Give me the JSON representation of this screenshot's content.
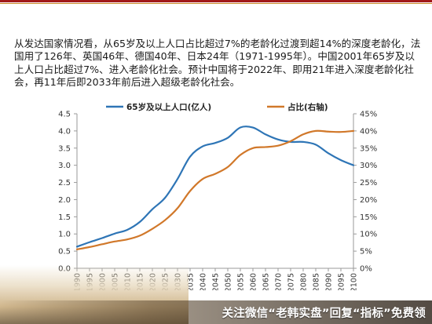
{
  "slide": {
    "paragraph": "从发达国家情况看，从65岁及以上人口占比超过7%的老龄化过渡到超14%的深度老龄化，法国用了126年、英国46年、德国40年、日本24年（1971-1995年）。中国2001年65岁及以上人口占比超过7%、进入老龄化社会。预计中国将于2022年、即用21年进入深度老龄化社会，再11年后即2033年前后进入超级老龄化社会。",
    "footer_text": "关注微信“老韩实盘”回复“指标”免费领"
  },
  "colors": {
    "series_population": "#2e75b6",
    "series_share": "#d1782a",
    "axis": "#9a9a9a",
    "text": "#333333",
    "header_rule": "#a21a1a"
  },
  "chart_data": {
    "type": "line",
    "x": [
      1990,
      1995,
      2000,
      2005,
      2010,
      2015,
      2020,
      2025,
      2030,
      2035,
      2040,
      2045,
      2050,
      2055,
      2060,
      2065,
      2070,
      2075,
      2080,
      2085,
      2090,
      2095,
      2100
    ],
    "x_tick_labels": [
      "1990",
      "1995",
      "2000",
      "2005",
      "2010",
      "2015",
      "2020",
      "2025",
      "2030",
      "2035",
      "2040",
      "2045",
      "2050",
      "2055",
      "2060",
      "2065",
      "2070",
      "2075",
      "2080",
      "2085",
      "2090",
      "2095",
      "2100"
    ],
    "series": [
      {
        "name": "65岁及以上人口(亿人)",
        "axis": "left",
        "values": [
          0.63,
          0.76,
          0.88,
          1.01,
          1.12,
          1.35,
          1.72,
          2.05,
          2.6,
          3.25,
          3.55,
          3.65,
          3.8,
          4.1,
          4.1,
          3.9,
          3.75,
          3.68,
          3.68,
          3.6,
          3.35,
          3.15,
          3.0
        ]
      },
      {
        "name": "占比(右轴)",
        "axis": "right",
        "values": [
          5.5,
          6.2,
          7.0,
          7.8,
          8.4,
          9.5,
          11.5,
          14.0,
          17.5,
          22.5,
          26.0,
          27.5,
          29.5,
          33.0,
          35.0,
          35.3,
          35.7,
          37.0,
          39.0,
          40.0,
          39.8,
          39.7,
          40.0
        ]
      }
    ],
    "y_left": {
      "ticks": [
        "4.5",
        "4.0",
        "3.5",
        "3.0",
        "2.5",
        "2.0",
        "1.5",
        "1.0",
        "0.5",
        "0.0"
      ],
      "range": [
        0,
        4.5
      ]
    },
    "y_right": {
      "ticks": [
        "45%",
        "40%",
        "35%",
        "30%",
        "25%",
        "20%",
        "15%",
        "10%",
        "5%",
        "0%"
      ],
      "range": [
        0,
        45
      ]
    },
    "legend": [
      "65岁及以上人口(亿人)",
      "占比(右轴)"
    ],
    "legend_position": "top",
    "grid": false
  }
}
